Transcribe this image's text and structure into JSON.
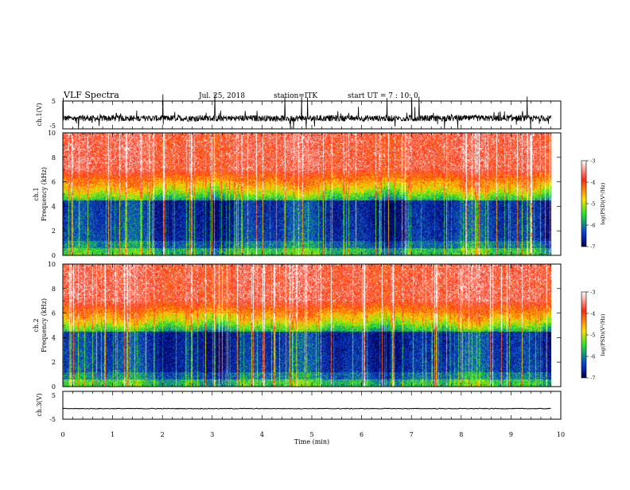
{
  "header": {
    "title": "VLF Spectra",
    "date": "Jul. 25, 2018",
    "station": "station=ITK",
    "start": "start UT =   7 : 10: 0"
  },
  "colorbar": {
    "label": "log(PSD)(V²/Hz)",
    "ticks": [
      "-3",
      "-4",
      "-5",
      "-6",
      "-7"
    ],
    "colors": [
      "#ffffff",
      "#ff2b12",
      "#ffe000",
      "#24e42c",
      "#0a3cd8",
      "#000050"
    ]
  },
  "chart_data": [
    {
      "type": "line",
      "ylabel": "ch.1(V)",
      "ylim": [
        -5,
        5
      ],
      "yticks": [
        "5",
        "-5"
      ],
      "xlim": [
        0,
        10
      ],
      "baseline": -1.2,
      "description_of_trace": "noisy waveform with sferic spikes"
    },
    {
      "type": "heatmap",
      "ylabel": "ch.1\nFrequency (kHz)",
      "ylabel_lines": [
        "ch.1",
        "Frequency (kHz)"
      ],
      "ylim": [
        0,
        10
      ],
      "yticks": [
        "0",
        "2",
        "4",
        "6",
        "8",
        "10"
      ],
      "xlim": [
        0,
        10
      ],
      "zlabel": "log(PSD)(V²/Hz)",
      "zlim": [
        -7,
        -3
      ]
    },
    {
      "type": "heatmap",
      "ylabel_lines": [
        "ch.2",
        "Frequency (kHz)"
      ],
      "ylim": [
        0,
        10
      ],
      "yticks": [
        "0",
        "2",
        "4",
        "6",
        "8",
        "10"
      ],
      "xlim": [
        0,
        10
      ],
      "zlabel": "log(PSD)(V²/Hz)",
      "zlim": [
        -7,
        -3
      ]
    },
    {
      "type": "line",
      "ylabel": "ch.3(V)",
      "ylim": [
        -5,
        5
      ],
      "yticks": [
        "5",
        "-5"
      ],
      "xlim": [
        0,
        10
      ],
      "baseline": -1.2
    }
  ],
  "xaxis": {
    "label": "Time (min)",
    "ticks": [
      "0",
      "1",
      "2",
      "3",
      "4",
      "5",
      "6",
      "7",
      "8",
      "9",
      "10"
    ],
    "data_end": 9.8
  }
}
